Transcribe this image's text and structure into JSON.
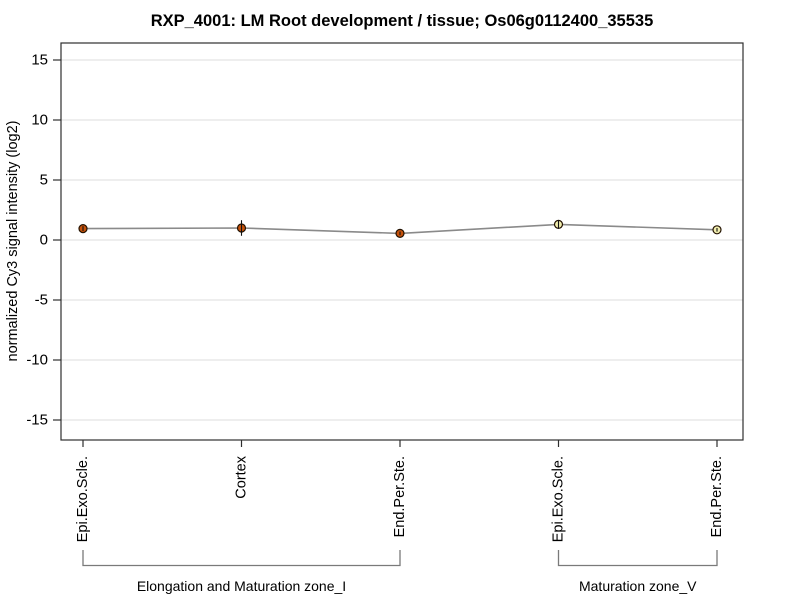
{
  "chart_data": {
    "type": "line",
    "title": "RXP_4001: LM Root development / tissue; Os06g0112400_35535",
    "xlabel": "",
    "ylabel": "normalized Cy3 signal intensity (log2)",
    "ylim": [
      -16.5,
      16.5
    ],
    "yticks": [
      15,
      10,
      5,
      0,
      -5,
      -10,
      -15
    ],
    "grid": true,
    "legend_position": "none",
    "categories": [
      "Epi.Exo.Scle.",
      "Cortex",
      "End.Per.Ste.",
      "Epi.Exo.Scle.",
      "End.Per.Ste."
    ],
    "series": [
      {
        "name": "Os06g0112400_35535",
        "values": [
          0.95,
          1.0,
          0.55,
          1.3,
          0.85
        ],
        "errors": [
          0.2,
          0.65,
          0.15,
          0.35,
          0.15
        ],
        "marker_fills": [
          "#c6510a",
          "#c6510a",
          "#c6510a",
          "#f0edae",
          "#f0edae"
        ]
      }
    ],
    "group_brackets": [
      {
        "label": "Elongation and Maturation zone_I",
        "start": 0,
        "end": 2
      },
      {
        "label": "Maturation zone_V",
        "start": 3,
        "end": 4
      }
    ],
    "colors": {
      "line": "#8a8a8a",
      "marker_stroke": "#221100",
      "grid": "#dcdcdc",
      "axis": "#2e2e2e",
      "error_bar": "#111111",
      "bracket": "#7a7a7a",
      "text": "#000000"
    }
  }
}
